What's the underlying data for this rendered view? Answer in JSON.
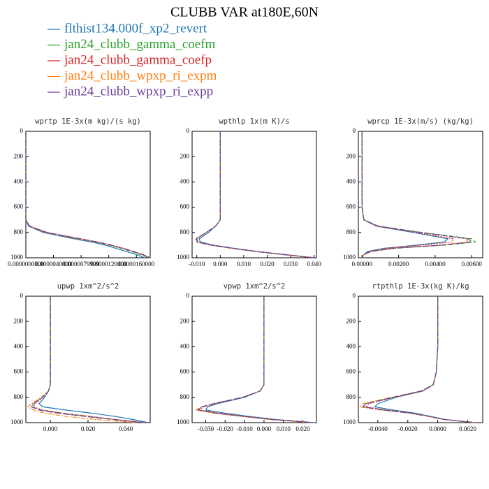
{
  "title": "CLUBB VAR at180E,60N",
  "legend": [
    {
      "name": "flthist134.000f_xp2_revert",
      "color": "#1f77b4",
      "dash": "solid"
    },
    {
      "name": "jan24_clubb_gamma_coefm",
      "color": "#2ca02c",
      "dash": "dashed"
    },
    {
      "name": "jan24_clubb_gamma_coefp",
      "color": "#d62728",
      "dash": "dotted"
    },
    {
      "name": "jan24_clubb_wpxp_ri_expm",
      "color": "#ff7f0e",
      "dash": "dashdot"
    },
    {
      "name": "jan24_clubb_wpxp_ri_expp",
      "color": "#6a3d9a",
      "dash": "longdash"
    }
  ],
  "chart_data": [
    {
      "type": "line",
      "title": "wprtp  1E-3x(m kg)/(s kg)",
      "y": [
        0,
        200,
        400,
        600,
        700,
        750,
        800,
        850,
        875,
        900,
        925,
        950,
        975,
        1000
      ],
      "ylim": [
        1000,
        0
      ],
      "yticks": [
        0,
        200,
        400,
        600,
        800,
        1000
      ],
      "xlim": [
        0,
        1.8e-05
      ],
      "xticks": [
        {
          "value": 0,
          "label": "0.0000000000"
        },
        {
          "value": 4e-06,
          "label": "0.0000040000"
        },
        {
          "value": 8e-06,
          "label": "0.0000079999"
        },
        {
          "value": 1.2e-05,
          "label": "0.0000120000"
        },
        {
          "value": 1.6e-05,
          "label": "0.0000160000"
        }
      ],
      "series": [
        {
          "values": [
            0,
            0,
            0,
            0,
            0,
            4e-07,
            2.5e-06,
            7e-06,
            9.5e-06,
            1.15e-05,
            1.3e-05,
            1.45e-05,
            1.6e-05,
            1.72e-05
          ]
        },
        {
          "values": [
            0,
            0,
            0,
            0,
            0,
            5e-07,
            3e-06,
            7.5e-06,
            1e-05,
            1.2e-05,
            1.38e-05,
            1.52e-05,
            1.66e-05,
            1.78e-05
          ]
        },
        {
          "values": [
            0,
            0,
            0,
            0,
            0,
            6e-07,
            3.2e-06,
            8e-06,
            1.05e-05,
            1.25e-05,
            1.42e-05,
            1.56e-05,
            1.7e-05,
            1.8e-05
          ]
        },
        {
          "values": [
            0,
            0,
            0,
            0,
            0,
            5e-07,
            2.8e-06,
            7.5e-06,
            1.02e-05,
            1.22e-05,
            1.4e-05,
            1.54e-05,
            1.68e-05,
            1.79e-05
          ]
        },
        {
          "values": [
            0,
            0,
            0,
            0,
            0,
            5e-07,
            3e-06,
            7.8e-06,
            1.03e-05,
            1.23e-05,
            1.4e-05,
            1.55e-05,
            1.69e-05,
            1.8e-05
          ]
        }
      ]
    },
    {
      "type": "line",
      "title": "wpthlp  1x(m K)/s",
      "y": [
        0,
        200,
        400,
        600,
        700,
        750,
        800,
        850,
        875,
        900,
        925,
        950,
        975,
        1000
      ],
      "ylim": [
        1000,
        0
      ],
      "yticks": [
        0,
        200,
        400,
        600,
        800,
        1000
      ],
      "xlim": [
        -0.012,
        0.041
      ],
      "xticks": [
        {
          "value": -0.01,
          "label": "-0.010"
        },
        {
          "value": 0,
          "label": "0.000"
        },
        {
          "value": 0.01,
          "label": "0.010"
        },
        {
          "value": 0.02,
          "label": "0.020"
        },
        {
          "value": 0.03,
          "label": "0.030"
        },
        {
          "value": 0.04,
          "label": "0.040"
        }
      ],
      "series": [
        {
          "values": [
            0,
            0,
            0,
            0,
            0,
            -0.002,
            -0.005,
            -0.009,
            -0.0085,
            -0.003,
            0.006,
            0.016,
            0.028,
            0.04
          ]
        },
        {
          "values": [
            0,
            0,
            0,
            0,
            0,
            -0.002,
            -0.006,
            -0.01,
            -0.0095,
            -0.004,
            0.005,
            0.015,
            0.027,
            0.04
          ]
        },
        {
          "values": [
            0,
            0,
            0,
            0,
            0,
            -0.002,
            -0.006,
            -0.0105,
            -0.01,
            -0.004,
            0.005,
            0.015,
            0.027,
            0.04
          ]
        },
        {
          "values": [
            0,
            0,
            0,
            0,
            0,
            -0.002,
            -0.006,
            -0.01,
            -0.0098,
            -0.004,
            0.005,
            0.015,
            0.027,
            0.04
          ]
        },
        {
          "values": [
            0,
            0,
            0,
            0,
            0,
            -0.002,
            -0.006,
            -0.0102,
            -0.0098,
            -0.004,
            0.005,
            0.015,
            0.027,
            0.04
          ]
        }
      ]
    },
    {
      "type": "line",
      "title": "wprcp  1E-3x(m/s) (kg/kg)",
      "y": [
        0,
        200,
        400,
        600,
        700,
        750,
        800,
        850,
        875,
        900,
        925,
        950,
        975,
        1000
      ],
      "ylim": [
        1000,
        0
      ],
      "yticks": [
        0,
        200,
        400,
        600,
        800,
        1000
      ],
      "xlim": [
        -0.0002,
        0.0066
      ],
      "xticks": [
        {
          "value": 0,
          "label": "0.00000"
        },
        {
          "value": 0.002,
          "label": "0.00200"
        },
        {
          "value": 0.004,
          "label": "0.00400"
        },
        {
          "value": 0.006,
          "label": "0.00600"
        }
      ],
      "series": [
        {
          "values": [
            0,
            0,
            0,
            0,
            0.0001,
            0.0008,
            0.0028,
            0.0047,
            0.0045,
            0.003,
            0.0012,
            0.0003,
            0.0001,
            0
          ]
        },
        {
          "values": [
            0,
            0,
            0,
            0,
            0.0001,
            0.0009,
            0.0033,
            0.006,
            0.0062,
            0.0045,
            0.0018,
            0.0005,
            0.0001,
            0
          ]
        },
        {
          "values": [
            0,
            0,
            0,
            0,
            0.0001,
            0.0008,
            0.003,
            0.005,
            0.0049,
            0.0033,
            0.0013,
            0.0004,
            0.0001,
            0
          ]
        },
        {
          "values": [
            0,
            0,
            0,
            0,
            0.0001,
            0.0009,
            0.0032,
            0.0057,
            0.0058,
            0.0042,
            0.0016,
            0.0005,
            0.0001,
            0
          ]
        },
        {
          "values": [
            0,
            0,
            0,
            0,
            0.0001,
            0.0009,
            0.0032,
            0.0058,
            0.006,
            0.0044,
            0.0017,
            0.0005,
            0.0001,
            0
          ]
        }
      ]
    },
    {
      "type": "line",
      "title": "upwp  1xm^2/s^2",
      "y": [
        0,
        200,
        400,
        600,
        700,
        750,
        800,
        850,
        875,
        900,
        925,
        950,
        975,
        1000
      ],
      "ylim": [
        1000,
        0
      ],
      "yticks": [
        0,
        200,
        400,
        600,
        800,
        1000
      ],
      "xlim": [
        -0.013,
        0.053
      ],
      "xticks": [
        {
          "value": 0,
          "label": "0.000"
        },
        {
          "value": 0.02,
          "label": "0.020"
        },
        {
          "value": 0.04,
          "label": "0.040"
        }
      ],
      "series": [
        {
          "values": [
            0,
            0,
            0,
            0,
            0,
            -0.001,
            -0.003,
            -0.006,
            -0.004,
            0.008,
            0.022,
            0.034,
            0.044,
            0.052
          ]
        },
        {
          "values": [
            0,
            0,
            0,
            0,
            0,
            -0.001,
            -0.004,
            -0.009,
            -0.01,
            -0.005,
            0.006,
            0.02,
            0.034,
            0.05
          ]
        },
        {
          "values": [
            0,
            0,
            0,
            0,
            0,
            -0.001,
            -0.004,
            -0.008,
            -0.009,
            -0.004,
            0.007,
            0.021,
            0.035,
            0.051
          ]
        },
        {
          "values": [
            0,
            0,
            0,
            0,
            0,
            -0.001,
            -0.005,
            -0.01,
            -0.012,
            -0.009,
            -0.003,
            0.008,
            0.024,
            0.046
          ]
        },
        {
          "values": [
            0,
            0,
            0,
            0,
            0,
            -0.001,
            -0.004,
            -0.009,
            -0.01,
            -0.006,
            0.004,
            0.018,
            0.033,
            0.05
          ]
        }
      ]
    },
    {
      "type": "line",
      "title": "vpwp  1xm^2/s^2",
      "y": [
        0,
        200,
        400,
        600,
        700,
        750,
        800,
        850,
        875,
        900,
        925,
        950,
        975,
        1000
      ],
      "ylim": [
        1000,
        0
      ],
      "yticks": [
        0,
        200,
        400,
        600,
        800,
        1000
      ],
      "xlim": [
        -0.037,
        0.027
      ],
      "xticks": [
        {
          "value": -0.03,
          "label": "-0.030"
        },
        {
          "value": -0.02,
          "label": "-0.020"
        },
        {
          "value": -0.01,
          "label": "-0.010"
        },
        {
          "value": 0,
          "label": "0.000"
        },
        {
          "value": 0.01,
          "label": "0.010"
        },
        {
          "value": 0.02,
          "label": "0.020"
        }
      ],
      "series": [
        {
          "values": [
            0,
            0,
            0,
            0,
            0,
            -0.002,
            -0.01,
            -0.024,
            -0.029,
            -0.03,
            -0.02,
            -0.008,
            0.006,
            0.026
          ]
        },
        {
          "values": [
            0,
            0,
            0,
            0,
            0,
            -0.002,
            -0.011,
            -0.026,
            -0.032,
            -0.034,
            -0.024,
            -0.01,
            0.004,
            0.025
          ]
        },
        {
          "values": [
            0,
            0,
            0,
            0,
            0,
            -0.002,
            -0.011,
            -0.025,
            -0.031,
            -0.033,
            -0.023,
            -0.01,
            0.004,
            0.025
          ]
        },
        {
          "values": [
            0,
            0,
            0,
            0,
            0,
            -0.002,
            -0.011,
            -0.026,
            -0.032,
            -0.035,
            -0.026,
            -0.012,
            0.003,
            0.024
          ]
        },
        {
          "values": [
            0,
            0,
            0,
            0,
            0,
            -0.002,
            -0.011,
            -0.026,
            -0.032,
            -0.034,
            -0.025,
            -0.011,
            0.004,
            0.025
          ]
        }
      ]
    },
    {
      "type": "line",
      "title": "rtpthlp  1E-3x(kg K)/kg",
      "y": [
        0,
        200,
        400,
        600,
        700,
        750,
        800,
        850,
        875,
        900,
        925,
        950,
        975,
        1000
      ],
      "ylim": [
        1000,
        0
      ],
      "yticks": [
        0,
        200,
        400,
        600,
        800,
        1000
      ],
      "xlim": [
        -0.0053,
        0.003
      ],
      "xticks": [
        {
          "value": -0.004,
          "label": "-0.0040"
        },
        {
          "value": -0.002,
          "label": "-0.0020"
        },
        {
          "value": 0,
          "label": "0.0000"
        },
        {
          "value": 0.002,
          "label": "0.0020"
        }
      ],
      "series": [
        {
          "values": [
            0,
            0,
            0,
            -0.0001,
            -0.0003,
            -0.001,
            -0.0028,
            -0.004,
            -0.0042,
            -0.003,
            -0.0015,
            -0.0005,
            0.0005,
            0.0025
          ]
        },
        {
          "values": [
            0,
            0,
            0,
            -0.0001,
            -0.0003,
            -0.0011,
            -0.003,
            -0.0048,
            -0.005,
            -0.0036,
            -0.0018,
            -0.0006,
            0.0004,
            0.0025
          ]
        },
        {
          "values": [
            0,
            0,
            0,
            -0.0001,
            -0.0003,
            -0.001,
            -0.0029,
            -0.0046,
            -0.0048,
            -0.0034,
            -0.0017,
            -0.0006,
            0.0004,
            0.0025
          ]
        },
        {
          "values": [
            0,
            0,
            0,
            -0.0001,
            -0.0003,
            -0.0011,
            -0.0031,
            -0.005,
            -0.0052,
            -0.0038,
            -0.0019,
            -0.0007,
            0.0004,
            0.0025
          ]
        },
        {
          "values": [
            0,
            0,
            0,
            -0.0001,
            -0.0003,
            -0.0011,
            -0.003,
            -0.0048,
            -0.005,
            -0.0036,
            -0.0018,
            -0.0006,
            0.0004,
            0.0025
          ]
        }
      ]
    }
  ]
}
